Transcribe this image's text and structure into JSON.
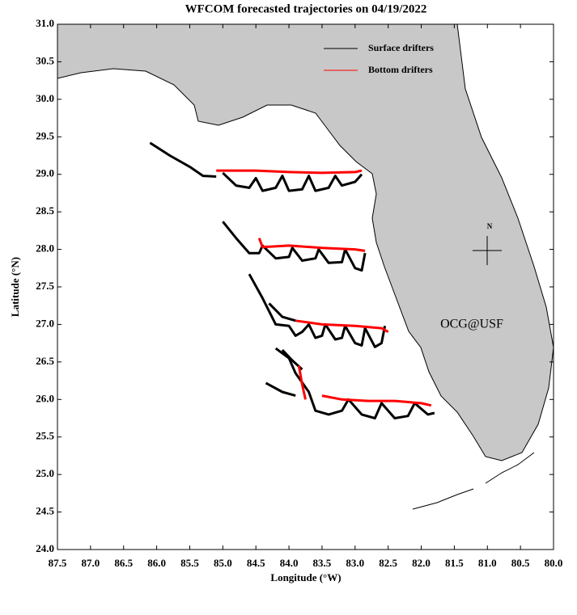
{
  "chart_data": {
    "type": "line",
    "title": "WFCOM forecasted trajectories on 04/19/2022",
    "xlabel": "Longitude (°W)",
    "ylabel": "Latitude (°N)",
    "xlim": [
      87.5,
      80.0
    ],
    "ylim": [
      24.0,
      31.0
    ],
    "xticks": [
      87.5,
      {
        "value": 87,
        "label": "87.0"
      },
      86.5,
      {
        "value": 86,
        "label": "86.0"
      },
      85.5,
      {
        "value": 85,
        "label": "85.0"
      },
      84.5,
      {
        "value": 84,
        "label": "84.0"
      },
      83.5,
      {
        "value": 83,
        "label": "83.0"
      },
      82.5,
      {
        "value": 82,
        "label": "82.0"
      },
      81.5,
      {
        "value": 81,
        "label": "81.0"
      },
      80.5,
      {
        "value": 80,
        "label": "80.0"
      }
    ],
    "yticks": [
      {
        "value": 24,
        "label": "24.0"
      },
      24.5,
      {
        "value": 25,
        "label": "25.0"
      },
      25.5,
      {
        "value": 26,
        "label": "26.0"
      },
      26.5,
      {
        "value": 27,
        "label": "27.0"
      },
      27.5,
      {
        "value": 28,
        "label": "28.0"
      },
      28.5,
      {
        "value": 29,
        "label": "29.0"
      },
      29.5,
      {
        "value": 30,
        "label": "30.0"
      },
      30.5,
      {
        "value": 31,
        "label": "31.0"
      }
    ],
    "legend": "upper right",
    "annotation": "OCG@USF",
    "annotation_color": "#ff0000",
    "compass_label": "N",
    "series": [
      {
        "name": "Surface drifters",
        "color": "#000000",
        "x": [
          86.1,
          85.8,
          85.5,
          85.3,
          85.1,
          null,
          85.0,
          84.8,
          84.6,
          84.5,
          84.4,
          84.2,
          84.1,
          84.0,
          83.8,
          83.7,
          83.6,
          83.4,
          83.3,
          83.2,
          83.0,
          82.9,
          null,
          85.0,
          84.8,
          84.6,
          84.45,
          84.4,
          84.2,
          84.0,
          83.95,
          83.8,
          83.6,
          83.55,
          83.4,
          83.2,
          83.15,
          83.0,
          82.9,
          82.85,
          null,
          84.6,
          84.4,
          84.2,
          84.0,
          83.9,
          83.8,
          83.7,
          83.6,
          83.5,
          83.45,
          83.3,
          83.2,
          83.15,
          83.0,
          82.9,
          82.85,
          82.7,
          82.6,
          82.55,
          null,
          84.3,
          84.1,
          83.9,
          null,
          84.2,
          84.0,
          83.9,
          83.7,
          83.6,
          83.4,
          83.2,
          83.1,
          82.9,
          82.7,
          82.6,
          82.4,
          82.2,
          82.1,
          81.9,
          81.8,
          null,
          84.35,
          84.1,
          83.9,
          null,
          84.1,
          83.95,
          83.8
        ],
        "y": [
          29.42,
          29.25,
          29.1,
          28.98,
          28.97,
          null,
          29.02,
          28.85,
          28.82,
          28.95,
          28.78,
          28.82,
          28.98,
          28.78,
          28.8,
          28.98,
          28.78,
          28.82,
          28.98,
          28.85,
          28.9,
          29.0,
          null,
          28.37,
          28.15,
          27.95,
          27.95,
          28.05,
          27.88,
          27.9,
          28.02,
          27.85,
          27.88,
          28.0,
          27.82,
          27.83,
          28.0,
          27.75,
          27.72,
          27.95,
          null,
          27.67,
          27.35,
          27.0,
          26.98,
          26.85,
          26.9,
          27.0,
          26.82,
          26.85,
          27.0,
          26.8,
          26.82,
          26.98,
          26.75,
          26.72,
          26.95,
          26.7,
          26.75,
          26.98,
          null,
          27.28,
          27.1,
          27.05,
          null,
          26.68,
          26.55,
          26.35,
          26.1,
          25.85,
          25.8,
          25.85,
          26.0,
          25.8,
          25.75,
          25.95,
          25.75,
          25.78,
          25.95,
          25.8,
          25.82,
          null,
          26.22,
          26.1,
          26.05,
          null,
          26.66,
          26.52,
          26.4
        ]
      },
      {
        "name": "Bottom drifters",
        "color": "#ff0000",
        "x": [
          85.1,
          84.5,
          84.0,
          83.5,
          83.0,
          82.9,
          null,
          84.45,
          84.4,
          84.0,
          83.5,
          83.0,
          82.85,
          null,
          83.9,
          83.5,
          83.0,
          82.6,
          82.5,
          null,
          83.85,
          83.8,
          83.75,
          null,
          83.5,
          83.2,
          82.8,
          82.4,
          82.0,
          81.85
        ],
        "y": [
          29.05,
          29.05,
          29.03,
          29.02,
          29.03,
          29.05,
          null,
          28.15,
          28.03,
          28.05,
          28.02,
          28.0,
          27.98,
          null,
          27.05,
          27.0,
          26.98,
          26.95,
          26.9,
          null,
          26.45,
          26.2,
          26.0,
          null,
          26.05,
          26.0,
          25.98,
          25.98,
          25.95,
          25.92
        ]
      }
    ]
  }
}
